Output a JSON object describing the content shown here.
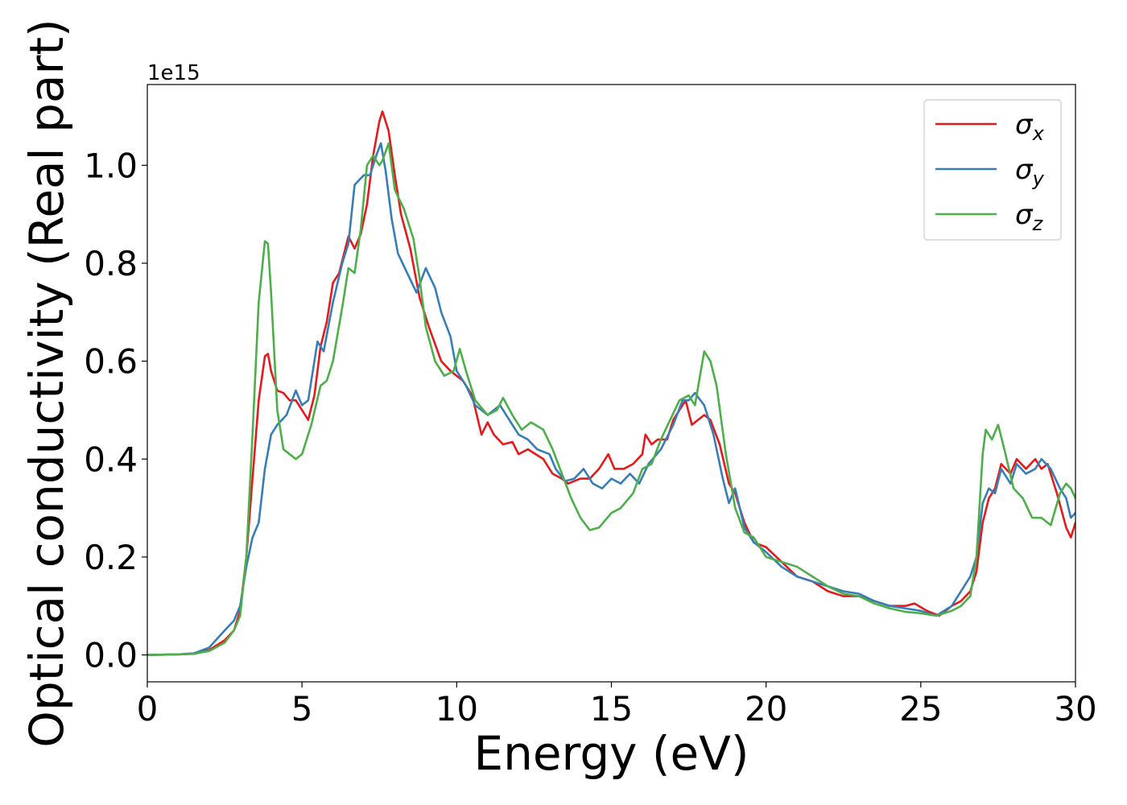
{
  "chart_data": {
    "type": "line",
    "xlabel": "Energy (eV)",
    "ylabel": "Optical conductivity (Real part)",
    "y_offset_text": "1e15",
    "xlim": [
      0,
      30
    ],
    "ylim": [
      -0.055,
      1.165
    ],
    "y_scale_factor": 1000000000000000.0,
    "x_ticks": [
      0,
      5,
      10,
      15,
      20,
      25,
      30
    ],
    "x_tick_labels": [
      "0",
      "5",
      "10",
      "15",
      "20",
      "25",
      "30"
    ],
    "y_ticks": [
      0.0,
      0.2,
      0.4,
      0.6,
      0.8,
      1.0
    ],
    "y_tick_labels": [
      "0.0",
      "0.2",
      "0.4",
      "0.6",
      "0.8",
      "1.0"
    ],
    "grid": false,
    "legend_position": "top-right",
    "series": [
      {
        "name": "σx",
        "symbol": "σ",
        "subscript": "x",
        "color": "#e41a1c",
        "points": [
          [
            0,
            0
          ],
          [
            1,
            0.001
          ],
          [
            1.5,
            0.003
          ],
          [
            2,
            0.01
          ],
          [
            2.5,
            0.03
          ],
          [
            2.8,
            0.05
          ],
          [
            3.0,
            0.09
          ],
          [
            3.2,
            0.2
          ],
          [
            3.4,
            0.36
          ],
          [
            3.6,
            0.52
          ],
          [
            3.8,
            0.61
          ],
          [
            3.9,
            0.615
          ],
          [
            4.0,
            0.58
          ],
          [
            4.2,
            0.54
          ],
          [
            4.4,
            0.535
          ],
          [
            4.6,
            0.52
          ],
          [
            4.8,
            0.52
          ],
          [
            5.0,
            0.5
          ],
          [
            5.2,
            0.48
          ],
          [
            5.4,
            0.53
          ],
          [
            5.6,
            0.63
          ],
          [
            5.8,
            0.68
          ],
          [
            6.0,
            0.76
          ],
          [
            6.2,
            0.78
          ],
          [
            6.5,
            0.855
          ],
          [
            6.7,
            0.83
          ],
          [
            6.9,
            0.86
          ],
          [
            7.1,
            0.92
          ],
          [
            7.3,
            1.02
          ],
          [
            7.5,
            1.09
          ],
          [
            7.6,
            1.11
          ],
          [
            7.8,
            1.07
          ],
          [
            8.0,
            0.98
          ],
          [
            8.2,
            0.9
          ],
          [
            8.5,
            0.83
          ],
          [
            8.8,
            0.73
          ],
          [
            9.1,
            0.67
          ],
          [
            9.5,
            0.6
          ],
          [
            9.8,
            0.58
          ],
          [
            10.2,
            0.56
          ],
          [
            10.5,
            0.53
          ],
          [
            10.8,
            0.45
          ],
          [
            11.0,
            0.475
          ],
          [
            11.2,
            0.45
          ],
          [
            11.5,
            0.43
          ],
          [
            11.8,
            0.435
          ],
          [
            12.0,
            0.41
          ],
          [
            12.3,
            0.42
          ],
          [
            12.8,
            0.4
          ],
          [
            13.1,
            0.37
          ],
          [
            13.4,
            0.36
          ],
          [
            13.6,
            0.35
          ],
          [
            14.0,
            0.36
          ],
          [
            14.3,
            0.36
          ],
          [
            14.6,
            0.38
          ],
          [
            14.9,
            0.41
          ],
          [
            15.1,
            0.38
          ],
          [
            15.4,
            0.38
          ],
          [
            15.7,
            0.39
          ],
          [
            16.0,
            0.41
          ],
          [
            16.1,
            0.45
          ],
          [
            16.3,
            0.43
          ],
          [
            16.5,
            0.44
          ],
          [
            16.8,
            0.44
          ],
          [
            17.0,
            0.48
          ],
          [
            17.2,
            0.5
          ],
          [
            17.4,
            0.52
          ],
          [
            17.6,
            0.47
          ],
          [
            17.8,
            0.48
          ],
          [
            18.0,
            0.49
          ],
          [
            18.2,
            0.48
          ],
          [
            18.5,
            0.43
          ],
          [
            18.8,
            0.35
          ],
          [
            19.0,
            0.33
          ],
          [
            19.3,
            0.27
          ],
          [
            19.6,
            0.23
          ],
          [
            20.0,
            0.22
          ],
          [
            20.5,
            0.19
          ],
          [
            21.0,
            0.16
          ],
          [
            21.5,
            0.15
          ],
          [
            22.0,
            0.13
          ],
          [
            22.5,
            0.12
          ],
          [
            23.0,
            0.12
          ],
          [
            23.5,
            0.11
          ],
          [
            24.0,
            0.1
          ],
          [
            24.5,
            0.1
          ],
          [
            24.8,
            0.105
          ],
          [
            25.2,
            0.09
          ],
          [
            25.6,
            0.08
          ],
          [
            26.0,
            0.1
          ],
          [
            26.3,
            0.11
          ],
          [
            26.6,
            0.13
          ],
          [
            26.8,
            0.17
          ],
          [
            27.0,
            0.27
          ],
          [
            27.2,
            0.32
          ],
          [
            27.4,
            0.34
          ],
          [
            27.6,
            0.39
          ],
          [
            27.9,
            0.37
          ],
          [
            28.1,
            0.4
          ],
          [
            28.4,
            0.38
          ],
          [
            28.7,
            0.4
          ],
          [
            28.9,
            0.38
          ],
          [
            29.1,
            0.39
          ],
          [
            29.4,
            0.33
          ],
          [
            29.7,
            0.26
          ],
          [
            29.85,
            0.24
          ],
          [
            30,
            0.27
          ]
        ]
      },
      {
        "name": "σy",
        "symbol": "σ",
        "subscript": "y",
        "color": "#377eb8",
        "points": [
          [
            0,
            0
          ],
          [
            1,
            0.001
          ],
          [
            1.5,
            0.003
          ],
          [
            2,
            0.015
          ],
          [
            2.5,
            0.05
          ],
          [
            2.8,
            0.07
          ],
          [
            3.0,
            0.1
          ],
          [
            3.2,
            0.18
          ],
          [
            3.4,
            0.24
          ],
          [
            3.6,
            0.27
          ],
          [
            3.8,
            0.38
          ],
          [
            4.0,
            0.45
          ],
          [
            4.2,
            0.47
          ],
          [
            4.5,
            0.49
          ],
          [
            4.8,
            0.54
          ],
          [
            5.0,
            0.51
          ],
          [
            5.2,
            0.52
          ],
          [
            5.5,
            0.64
          ],
          [
            5.7,
            0.62
          ],
          [
            6.0,
            0.72
          ],
          [
            6.3,
            0.8
          ],
          [
            6.5,
            0.84
          ],
          [
            6.7,
            0.96
          ],
          [
            7.0,
            0.98
          ],
          [
            7.2,
            0.98
          ],
          [
            7.4,
            1.02
          ],
          [
            7.55,
            1.045
          ],
          [
            7.7,
            0.99
          ],
          [
            7.9,
            0.89
          ],
          [
            8.1,
            0.82
          ],
          [
            8.4,
            0.78
          ],
          [
            8.7,
            0.74
          ],
          [
            9.0,
            0.79
          ],
          [
            9.3,
            0.75
          ],
          [
            9.5,
            0.7
          ],
          [
            9.8,
            0.65
          ],
          [
            10.0,
            0.58
          ],
          [
            10.3,
            0.55
          ],
          [
            10.6,
            0.51
          ],
          [
            11.0,
            0.49
          ],
          [
            11.4,
            0.51
          ],
          [
            11.6,
            0.49
          ],
          [
            12.0,
            0.45
          ],
          [
            12.3,
            0.44
          ],
          [
            12.6,
            0.42
          ],
          [
            13.0,
            0.41
          ],
          [
            13.2,
            0.38
          ],
          [
            13.5,
            0.355
          ],
          [
            13.8,
            0.36
          ],
          [
            14.1,
            0.38
          ],
          [
            14.4,
            0.35
          ],
          [
            14.7,
            0.34
          ],
          [
            15.0,
            0.36
          ],
          [
            15.3,
            0.35
          ],
          [
            15.6,
            0.37
          ],
          [
            15.9,
            0.35
          ],
          [
            16.2,
            0.39
          ],
          [
            16.6,
            0.42
          ],
          [
            17.0,
            0.47
          ],
          [
            17.3,
            0.52
          ],
          [
            17.5,
            0.52
          ],
          [
            17.7,
            0.535
          ],
          [
            18.0,
            0.51
          ],
          [
            18.3,
            0.45
          ],
          [
            18.6,
            0.36
          ],
          [
            18.8,
            0.31
          ],
          [
            19.0,
            0.34
          ],
          [
            19.3,
            0.26
          ],
          [
            19.6,
            0.23
          ],
          [
            20.0,
            0.21
          ],
          [
            20.5,
            0.18
          ],
          [
            21.0,
            0.16
          ],
          [
            21.5,
            0.15
          ],
          [
            22.0,
            0.14
          ],
          [
            22.5,
            0.13
          ],
          [
            23.0,
            0.125
          ],
          [
            23.5,
            0.11
          ],
          [
            24.0,
            0.1
          ],
          [
            24.5,
            0.095
          ],
          [
            25.0,
            0.09
          ],
          [
            25.5,
            0.08
          ],
          [
            26.0,
            0.1
          ],
          [
            26.3,
            0.13
          ],
          [
            26.6,
            0.16
          ],
          [
            26.8,
            0.2
          ],
          [
            27.0,
            0.31
          ],
          [
            27.2,
            0.34
          ],
          [
            27.4,
            0.33
          ],
          [
            27.6,
            0.38
          ],
          [
            27.9,
            0.35
          ],
          [
            28.1,
            0.39
          ],
          [
            28.4,
            0.37
          ],
          [
            28.7,
            0.38
          ],
          [
            28.9,
            0.4
          ],
          [
            29.2,
            0.38
          ],
          [
            29.5,
            0.34
          ],
          [
            29.7,
            0.32
          ],
          [
            29.85,
            0.28
          ],
          [
            30,
            0.29
          ]
        ]
      },
      {
        "name": "σz",
        "symbol": "σ",
        "subscript": "z",
        "color": "#4daf4a",
        "points": [
          [
            0,
            0
          ],
          [
            1,
            0.001
          ],
          [
            1.5,
            0.002
          ],
          [
            2,
            0.008
          ],
          [
            2.5,
            0.025
          ],
          [
            2.8,
            0.05
          ],
          [
            3.0,
            0.08
          ],
          [
            3.2,
            0.2
          ],
          [
            3.4,
            0.45
          ],
          [
            3.6,
            0.72
          ],
          [
            3.8,
            0.845
          ],
          [
            3.9,
            0.84
          ],
          [
            4.0,
            0.74
          ],
          [
            4.2,
            0.5
          ],
          [
            4.4,
            0.42
          ],
          [
            4.6,
            0.41
          ],
          [
            4.8,
            0.4
          ],
          [
            5.0,
            0.41
          ],
          [
            5.3,
            0.47
          ],
          [
            5.6,
            0.55
          ],
          [
            5.8,
            0.56
          ],
          [
            6.0,
            0.6
          ],
          [
            6.3,
            0.71
          ],
          [
            6.5,
            0.79
          ],
          [
            6.7,
            0.78
          ],
          [
            6.9,
            0.87
          ],
          [
            7.1,
            1.0
          ],
          [
            7.3,
            1.02
          ],
          [
            7.5,
            1.0
          ],
          [
            7.6,
            1.01
          ],
          [
            7.8,
            1.045
          ],
          [
            8.0,
            0.95
          ],
          [
            8.3,
            0.91
          ],
          [
            8.6,
            0.85
          ],
          [
            8.8,
            0.77
          ],
          [
            9.0,
            0.67
          ],
          [
            9.3,
            0.6
          ],
          [
            9.6,
            0.57
          ],
          [
            9.9,
            0.58
          ],
          [
            10.1,
            0.625
          ],
          [
            10.3,
            0.58
          ],
          [
            10.6,
            0.52
          ],
          [
            11.0,
            0.49
          ],
          [
            11.3,
            0.5
          ],
          [
            11.5,
            0.525
          ],
          [
            11.8,
            0.49
          ],
          [
            12.1,
            0.46
          ],
          [
            12.4,
            0.475
          ],
          [
            12.8,
            0.46
          ],
          [
            13.1,
            0.42
          ],
          [
            13.4,
            0.37
          ],
          [
            13.7,
            0.32
          ],
          [
            14.0,
            0.28
          ],
          [
            14.3,
            0.255
          ],
          [
            14.6,
            0.26
          ],
          [
            15.0,
            0.29
          ],
          [
            15.3,
            0.3
          ],
          [
            15.7,
            0.33
          ],
          [
            16.0,
            0.38
          ],
          [
            16.3,
            0.39
          ],
          [
            16.6,
            0.44
          ],
          [
            16.9,
            0.48
          ],
          [
            17.2,
            0.52
          ],
          [
            17.5,
            0.53
          ],
          [
            17.7,
            0.51
          ],
          [
            18.0,
            0.62
          ],
          [
            18.2,
            0.6
          ],
          [
            18.4,
            0.55
          ],
          [
            18.7,
            0.41
          ],
          [
            19.0,
            0.3
          ],
          [
            19.3,
            0.25
          ],
          [
            19.6,
            0.24
          ],
          [
            20.0,
            0.2
          ],
          [
            20.5,
            0.19
          ],
          [
            21.0,
            0.18
          ],
          [
            21.5,
            0.16
          ],
          [
            22.0,
            0.14
          ],
          [
            22.5,
            0.125
          ],
          [
            23.0,
            0.12
          ],
          [
            23.5,
            0.105
          ],
          [
            24.0,
            0.095
          ],
          [
            24.5,
            0.088
          ],
          [
            25.0,
            0.085
          ],
          [
            25.5,
            0.08
          ],
          [
            26.0,
            0.09
          ],
          [
            26.3,
            0.1
          ],
          [
            26.6,
            0.12
          ],
          [
            26.8,
            0.2
          ],
          [
            27.0,
            0.41
          ],
          [
            27.1,
            0.46
          ],
          [
            27.3,
            0.44
          ],
          [
            27.5,
            0.47
          ],
          [
            27.7,
            0.42
          ],
          [
            28.0,
            0.34
          ],
          [
            28.3,
            0.32
          ],
          [
            28.6,
            0.28
          ],
          [
            28.9,
            0.28
          ],
          [
            29.2,
            0.265
          ],
          [
            29.5,
            0.33
          ],
          [
            29.7,
            0.35
          ],
          [
            29.85,
            0.34
          ],
          [
            30,
            0.32
          ]
        ]
      }
    ]
  }
}
